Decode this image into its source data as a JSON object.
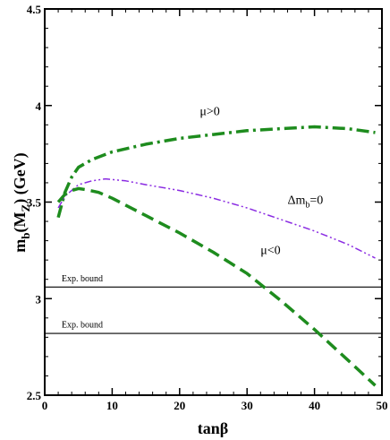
{
  "chart_data": {
    "type": "line",
    "xlabel": "tanβ",
    "ylabel": "m_b(M_Z)  (GeV)",
    "ylabel_main": "m",
    "ylabel_sub": "b",
    "ylabel_mid": "(M",
    "ylabel_sub2": "Z",
    "ylabel_end": ")  (GeV)",
    "xlim": [
      0,
      50
    ],
    "ylim": [
      2.5,
      4.5
    ],
    "x_ticks": [
      0,
      10,
      20,
      30,
      40,
      50
    ],
    "y_ticks": [
      2.5,
      3,
      3.5,
      4,
      4.5
    ],
    "x_tick_labels": [
      "0",
      "10",
      "20",
      "30",
      "40",
      "50"
    ],
    "y_tick_labels": [
      "2.5",
      "3",
      "3.5",
      "4",
      "4.5"
    ],
    "grid": false,
    "series": [
      {
        "name": "μ>0",
        "label_main": "μ>0",
        "label_x": 23,
        "label_y": 3.95,
        "color": "#1e8c1e",
        "style": "dash-dot",
        "x": [
          2,
          3,
          4,
          5,
          7,
          10,
          15,
          20,
          25,
          30,
          35,
          40,
          45,
          49
        ],
        "y": [
          3.42,
          3.55,
          3.63,
          3.68,
          3.72,
          3.76,
          3.8,
          3.83,
          3.85,
          3.87,
          3.88,
          3.89,
          3.88,
          3.86
        ]
      },
      {
        "name": "Δm_b=0",
        "label_main": "Δm",
        "label_sub": "b",
        "label_end": "=0",
        "label_x": 36,
        "label_y": 3.49,
        "color": "#8a2be2",
        "style": "dash-dot-dot",
        "x": [
          2,
          3,
          5,
          7,
          9,
          12,
          15,
          20,
          25,
          30,
          35,
          40,
          45,
          49
        ],
        "y": [
          3.47,
          3.53,
          3.59,
          3.61,
          3.62,
          3.61,
          3.59,
          3.56,
          3.52,
          3.47,
          3.41,
          3.35,
          3.28,
          3.21
        ]
      },
      {
        "name": "μ<0",
        "label_main": "μ<0",
        "label_x": 32,
        "label_y": 3.23,
        "color": "#1e8c1e",
        "style": "dashed",
        "x": [
          2,
          3,
          4,
          5,
          6,
          8,
          10,
          15,
          20,
          25,
          30,
          35,
          40,
          45,
          49
        ],
        "y": [
          3.5,
          3.54,
          3.56,
          3.57,
          3.565,
          3.55,
          3.52,
          3.43,
          3.34,
          3.24,
          3.13,
          2.99,
          2.84,
          2.68,
          2.55
        ]
      }
    ],
    "hlines": [
      {
        "y": 3.06,
        "label": "Exp. bound",
        "label_x": 2.5,
        "label_y": 3.09
      },
      {
        "y": 2.82,
        "label": "Exp. bound",
        "label_x": 2.5,
        "label_y": 2.85
      }
    ]
  }
}
